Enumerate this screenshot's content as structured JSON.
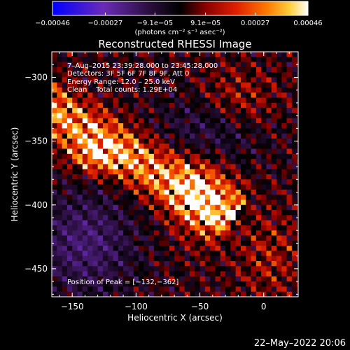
{
  "chart_data": {
    "type": "heatmap",
    "title": "Reconstructed RHESSI Image",
    "xlabel": "Heliocentric X (arcsec)",
    "ylabel": "Heliocentric Y (arcsec)",
    "xlim": [
      -166,
      27
    ],
    "ylim": [
      -472,
      -280
    ],
    "x_ticks": [
      -150,
      -100,
      -50,
      0
    ],
    "x_tick_labels": [
      "−150",
      "−100",
      "−50",
      "0"
    ],
    "y_ticks": [
      -300,
      -350,
      -400,
      -450
    ],
    "y_tick_labels": [
      "−300",
      "−350",
      "−400",
      "−450"
    ],
    "colorbar": {
      "range": [
        -0.00046,
        0.00046
      ],
      "ticks": [
        -0.00046,
        -0.00027,
        -9.1e-05,
        9.1e-05,
        0.00027,
        0.00046
      ],
      "tick_labels": [
        "−0.00046",
        "−0.00027",
        "−9.1e−05",
        "9.1e−05",
        "0.00027",
        "0.00046"
      ],
      "unit_label": "(photons cm⁻² s⁻¹ asec⁻²)",
      "colors": [
        "#0000ff",
        "#6a2bb8",
        "#2a0e3c",
        "#000000",
        "#8a0000",
        "#e02000",
        "#ff7a00",
        "#ffd040",
        "#ffffff"
      ]
    },
    "annotations": [
      "7–Aug–2015 23:39:28.000 to 23:45:28.000",
      "Detectors: 3F 5F 6F 7F 8F 9F, Att 0",
      "Energy Range: 12.0 – 25.0 keV",
      "Clean    Total counts: 1.29E+04",
      "Position of Peak = [−132,−362]"
    ],
    "peak_position": [
      -132,
      -362
    ],
    "footer_date": "22–May–2022 20:06"
  }
}
